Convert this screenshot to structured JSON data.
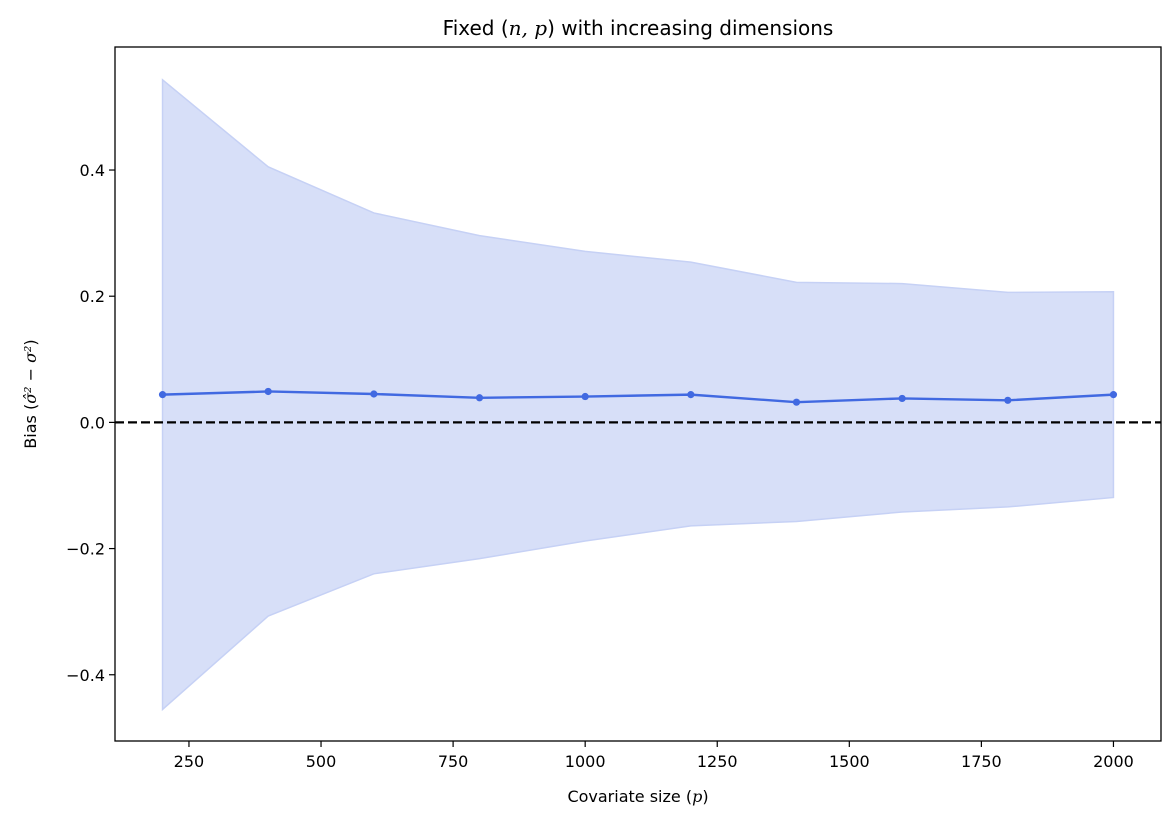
{
  "chart_data": {
    "type": "line",
    "title": {
      "prefix": "Fixed (",
      "math": "n, p",
      "suffix": ") with increasing dimensions"
    },
    "xlabel": {
      "prefix": "Covariate size (",
      "math": "p",
      "suffix": ")"
    },
    "ylabel": {
      "prefix": "Bias (",
      "math": "σ̂² − σ²",
      "suffix": ")"
    },
    "x": [
      200,
      400,
      600,
      800,
      1000,
      1200,
      1400,
      1600,
      1800,
      2000
    ],
    "series": [
      {
        "values": [
          0.044,
          0.049,
          0.045,
          0.039,
          0.041,
          0.044,
          0.032,
          0.038,
          0.035,
          0.044
        ],
        "lower": [
          -0.455,
          -0.307,
          -0.24,
          -0.216,
          -0.188,
          -0.164,
          -0.157,
          -0.142,
          -0.134,
          -0.119
        ],
        "upper": [
          0.543,
          0.405,
          0.332,
          0.296,
          0.271,
          0.254,
          0.222,
          0.22,
          0.206,
          0.207
        ],
        "color": "#4169e1",
        "band_color": "#c6d1f5"
      }
    ],
    "reference_line": {
      "y": 0,
      "style": "dashed",
      "color": "#000000"
    },
    "xlim": [
      110,
      2090
    ],
    "ylim": [
      -0.505,
      0.595
    ],
    "xticks": [
      250,
      500,
      750,
      1000,
      1250,
      1500,
      1750,
      2000
    ],
    "xtick_labels": [
      "250",
      "500",
      "750",
      "1000",
      "1250",
      "1500",
      "1750",
      "2000"
    ],
    "yticks": [
      -0.4,
      -0.2,
      0.0,
      0.2,
      0.4
    ],
    "ytick_labels": [
      "−0.4",
      "−0.2",
      "0.0",
      "0.2",
      "0.4"
    ],
    "grid": false,
    "legend": "none"
  }
}
